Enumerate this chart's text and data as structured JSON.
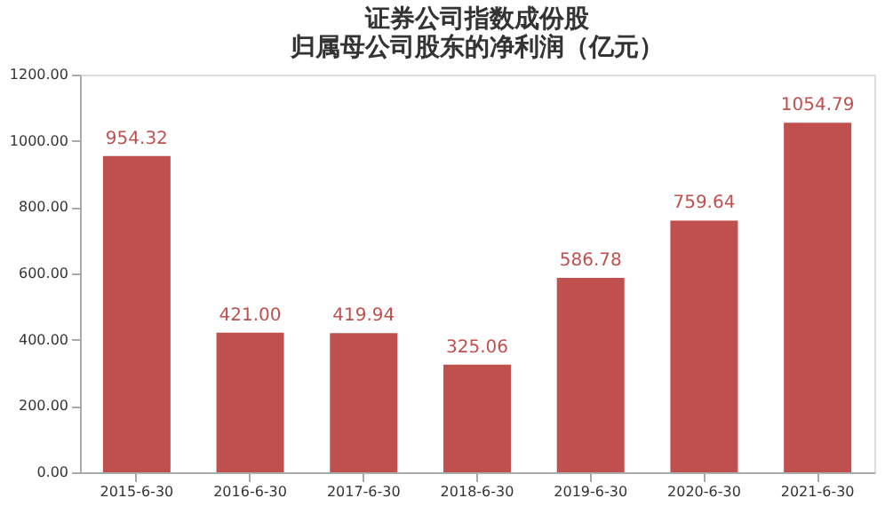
{
  "chart_data": {
    "type": "bar",
    "title": [
      "证券公司指数成份股",
      "归属母公司股东的净利润（亿元）"
    ],
    "categories": [
      "2015-6-30",
      "2016-6-30",
      "2017-6-30",
      "2018-6-30",
      "2019-6-30",
      "2020-6-30",
      "2021-6-30"
    ],
    "values": [
      954.32,
      421.0,
      419.94,
      325.06,
      586.78,
      759.64,
      1054.79
    ],
    "value_labels": [
      "954.32",
      "421.00",
      "419.94",
      "325.06",
      "586.78",
      "759.64",
      "1054.79"
    ],
    "color": "#c0504d",
    "ylim": [
      0,
      1200
    ],
    "yticks": [
      {
        "value": 0,
        "label": "0.00"
      },
      {
        "value": 200,
        "label": "200.00"
      },
      {
        "value": 400,
        "label": "400.00"
      },
      {
        "value": 600,
        "label": "600.00"
      },
      {
        "value": 800,
        "label": "800.00"
      },
      {
        "value": 1000,
        "label": "1000.00"
      },
      {
        "value": 1200,
        "label": "1200.00"
      }
    ],
    "grid": false
  }
}
